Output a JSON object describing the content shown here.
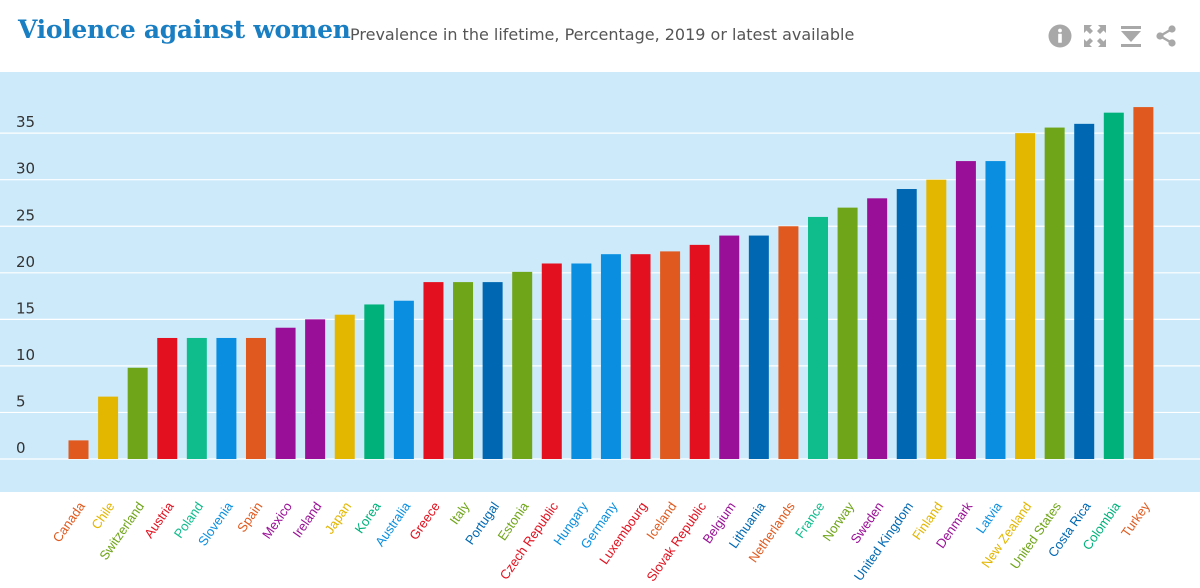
{
  "header": {
    "title": "Violence against women",
    "subtitle": "Prevalence in the lifetime, Percentage, 2019 or latest available"
  },
  "toolbar": [
    {
      "name": "info-icon",
      "icon": "info"
    },
    {
      "name": "expand-icon",
      "icon": "expand"
    },
    {
      "name": "download-icon",
      "icon": "download"
    },
    {
      "name": "share-icon",
      "icon": "share"
    }
  ],
  "colors": {
    "plot_background": "#cdeafa",
    "title": "#1a7ec2",
    "icons": "#999999"
  },
  "chart_data": {
    "type": "bar",
    "title": "Violence against women",
    "subtitle": "Prevalence in the lifetime, Percentage, 2019 or latest available",
    "xlabel": "",
    "ylabel": "",
    "ylim": [
      0,
      38
    ],
    "yticks": [
      0,
      5,
      10,
      15,
      20,
      25,
      30,
      35
    ],
    "grid": true,
    "categories": [
      "Canada",
      "Chile",
      "Switzerland",
      "Austria",
      "Poland",
      "Slovenia",
      "Spain",
      "Mexico",
      "Ireland",
      "Japan",
      "Korea",
      "Australia",
      "Greece",
      "Italy",
      "Portugal",
      "Estonia",
      "Czech Republic",
      "Hungary",
      "Germany",
      "Luxembourg",
      "Iceland",
      "Slovak Republic",
      "Belgium",
      "Lithuania",
      "Netherlands",
      "France",
      "Norway",
      "Sweden",
      "United Kingdom",
      "Finland",
      "Denmark",
      "Latvia",
      "New Zealand",
      "United States",
      "Costa Rica",
      "Colombia",
      "Turkey"
    ],
    "values": [
      2,
      6.7,
      9.8,
      13,
      13,
      13,
      13,
      14.1,
      15,
      15.5,
      16.6,
      17,
      19,
      19,
      19,
      20.1,
      21,
      21,
      22,
      22,
      22.3,
      23,
      24,
      24,
      25,
      26,
      27,
      28,
      29,
      30,
      32,
      32,
      35,
      35.6,
      36,
      37.2,
      37.8
    ],
    "colors": [
      "#e05a1f",
      "#e3b600",
      "#6fa519",
      "#e3111f",
      "#0fbc8c",
      "#0a8fe0",
      "#e05a1f",
      "#9a0f97",
      "#9a0f97",
      "#e3b600",
      "#00b27a",
      "#0a8fe0",
      "#e3111f",
      "#6fa519",
      "#0068b2",
      "#6fa519",
      "#e3111f",
      "#0a8fe0",
      "#0a8fe0",
      "#e3111f",
      "#e05a1f",
      "#e3111f",
      "#9a0f97",
      "#0068b2",
      "#e05a1f",
      "#0fbc8c",
      "#6fa519",
      "#9a0f97",
      "#0068b2",
      "#e3b600",
      "#9a0f97",
      "#0a8fe0",
      "#e3b600",
      "#6fa519",
      "#0068b2",
      "#00b27a",
      "#e05a1f"
    ]
  }
}
